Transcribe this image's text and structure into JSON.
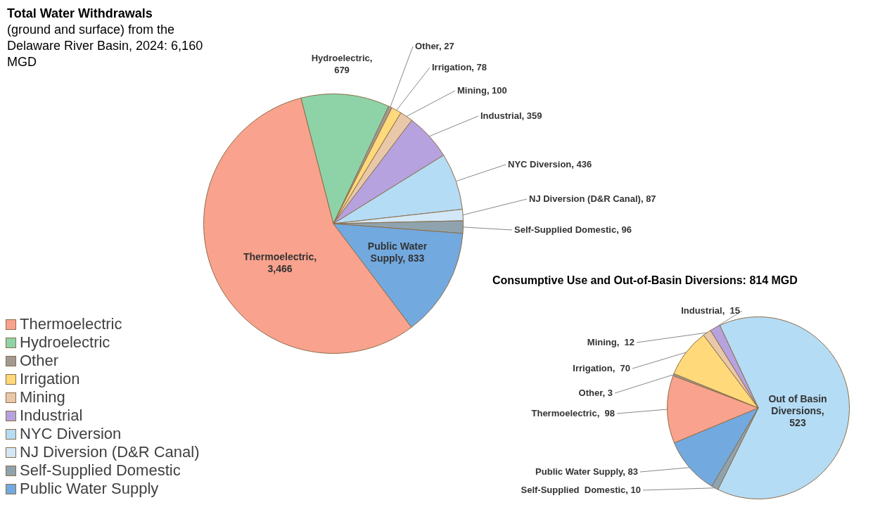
{
  "chart_data": [
    {
      "type": "pie",
      "title": "Total Water Withdrawals",
      "subtitle": "(ground and surface) from the Delaware River Basin, 2024: 6,160 MGD",
      "categories": [
        "Thermoelectric",
        "Hydroelectric",
        "Other",
        "Irrigation",
        "Mining",
        "Industrial",
        "NYC Diversion",
        "NJ Diversion (D&R Canal)",
        "Self-Supplied Domestic",
        "Public Water Supply"
      ],
      "values": [
        3466,
        679,
        27,
        78,
        100,
        359,
        436,
        87,
        96,
        833
      ],
      "colors": [
        "#f9a28e",
        "#8ed3a8",
        "#a19a94",
        "#ffd97a",
        "#e8c8a8",
        "#b5a2de",
        "#b4dcf5",
        "#d2e8f8",
        "#8fa3ae",
        "#72a9df"
      ],
      "value_labels": [
        "Thermoelectric, 3,466",
        "Hydroelectric, 679",
        "Other, 27",
        "Irrigation, 78",
        "Mining, 100",
        "Industrial, 359",
        "NYC Diversion, 436",
        "NJ Diversion (D&R Canal), 87",
        "Self-Supplied Domestic, 96",
        "Public Water Supply, 833"
      ],
      "legend": "left"
    },
    {
      "type": "pie",
      "title": "Consumptive Use and Out-of-Basin Diversions: 814 MGD",
      "categories": [
        null,
        null,
        null,
        null,
        null,
        null,
        null,
        null
      ],
      "values": [
        523,
        10,
        83,
        98,
        3,
        70,
        12,
        15
      ],
      "colors": [
        "#b4dcf5",
        "#8fa3ae",
        "#72a9df",
        "#f9a28e",
        "#a19a94",
        "#ffd97a",
        "#e8c8a8",
        "#b5a2de"
      ],
      "value_labels": [
        "Out of Basin Diversions, 523",
        "Self-Supplied  Domestic, 10",
        "Public Water Supply, 83",
        "Thermoelectric,  98",
        "Other, 3",
        "Irrigation,  70",
        "Mining,  12",
        "Industrial,  15"
      ]
    }
  ]
}
